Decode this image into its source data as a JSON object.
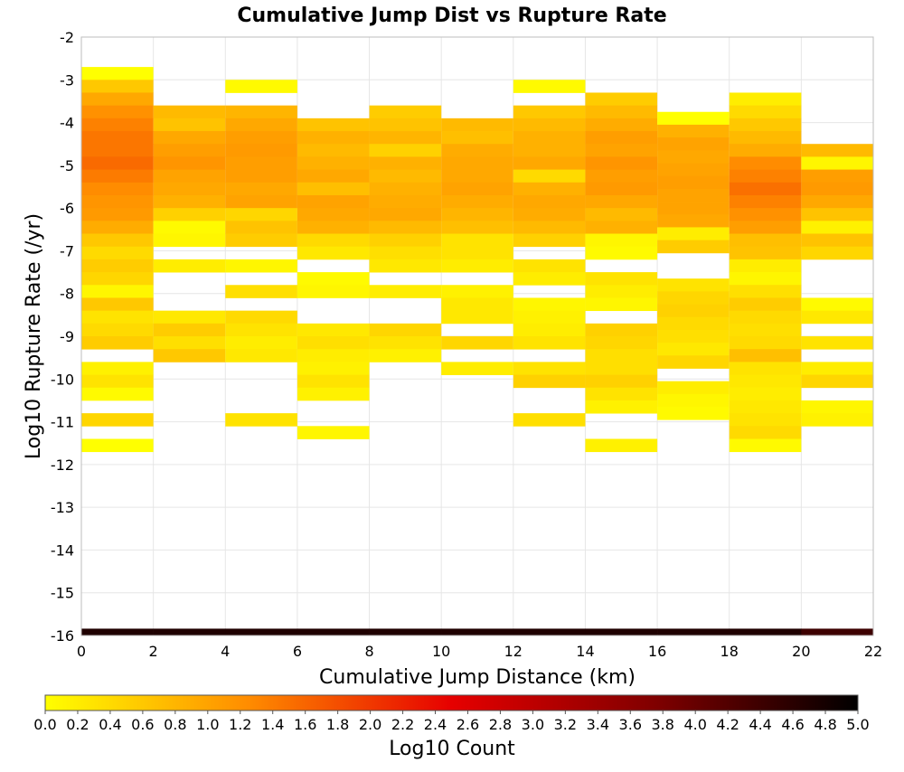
{
  "chart_data": {
    "type": "heatmap",
    "title": "Cumulative Jump Dist vs Rupture Rate",
    "xlabel": "Cumulative Jump Distance (km)",
    "ylabel": "Log10 Rupture Rate (/yr)",
    "xlim": [
      0,
      22
    ],
    "ylim": [
      -16,
      -2
    ],
    "x_ticks": [
      0,
      2,
      4,
      6,
      8,
      10,
      12,
      14,
      16,
      18,
      20,
      22
    ],
    "y_ticks": [
      -2,
      -3,
      -4,
      -5,
      -6,
      -7,
      -8,
      -9,
      -10,
      -11,
      -12,
      -13,
      -14,
      -15,
      -16
    ],
    "grid": true,
    "x_bin_width": 2,
    "y_bin_height": 0.3,
    "colorbar": {
      "label": "Log10 Count",
      "min": 0.0,
      "max": 5.0,
      "ticks": [
        "0.0",
        "0.2",
        "0.4",
        "0.6",
        "0.8",
        "1.0",
        "1.2",
        "1.4",
        "1.6",
        "1.8",
        "2.0",
        "2.2",
        "2.4",
        "2.6",
        "2.8",
        "3.0",
        "3.2",
        "3.4",
        "3.6",
        "3.8",
        "4.0",
        "4.2",
        "4.4",
        "4.6",
        "4.8",
        "5.0"
      ],
      "colors": [
        "#ffff00",
        "#ff8c00",
        "#e60000",
        "#800000",
        "#000000"
      ]
    },
    "columns": [
      {
        "x": 0,
        "cells": [
          [
            -2.85,
            0.0
          ],
          [
            -3.15,
            0.6
          ],
          [
            -3.45,
            0.95
          ],
          [
            -3.75,
            1.2
          ],
          [
            -4.05,
            1.35
          ],
          [
            -4.35,
            1.45
          ],
          [
            -4.65,
            1.45
          ],
          [
            -4.95,
            1.55
          ],
          [
            -5.25,
            1.4
          ],
          [
            -5.55,
            1.25
          ],
          [
            -5.85,
            1.15
          ],
          [
            -6.15,
            1.1
          ],
          [
            -6.45,
            0.9
          ],
          [
            -6.75,
            0.6
          ],
          [
            -7.05,
            0.4
          ],
          [
            -7.35,
            0.55
          ],
          [
            -7.65,
            0.45
          ],
          [
            -7.95,
            0.1
          ],
          [
            -8.25,
            0.6
          ],
          [
            -8.55,
            0.3
          ],
          [
            -8.85,
            0.4
          ],
          [
            -9.15,
            0.55
          ],
          [
            -9.75,
            0.15
          ],
          [
            -10.05,
            0.3
          ],
          [
            -10.35,
            0.05
          ],
          [
            -10.95,
            0.45
          ],
          [
            -11.55,
            0.0
          ]
        ]
      },
      {
        "x": 2,
        "cells": [
          [
            -3.75,
            0.75
          ],
          [
            -4.05,
            0.65
          ],
          [
            -4.35,
            0.95
          ],
          [
            -4.65,
            1.05
          ],
          [
            -4.95,
            1.15
          ],
          [
            -5.25,
            1.0
          ],
          [
            -5.55,
            0.95
          ],
          [
            -5.85,
            0.85
          ],
          [
            -6.15,
            0.5
          ],
          [
            -6.45,
            0.05
          ],
          [
            -6.75,
            0.1
          ],
          [
            -7.35,
            0.2
          ],
          [
            -8.55,
            0.25
          ],
          [
            -8.85,
            0.55
          ],
          [
            -9.15,
            0.35
          ],
          [
            -9.45,
            0.6
          ]
        ]
      },
      {
        "x": 4,
        "cells": [
          [
            -3.15,
            0.05
          ],
          [
            -3.75,
            0.8
          ],
          [
            -4.05,
            0.95
          ],
          [
            -4.35,
            1.05
          ],
          [
            -4.65,
            1.1
          ],
          [
            -4.95,
            1.05
          ],
          [
            -5.25,
            1.05
          ],
          [
            -5.55,
            0.95
          ],
          [
            -5.85,
            1.0
          ],
          [
            -6.15,
            0.45
          ],
          [
            -6.45,
            0.65
          ],
          [
            -6.75,
            0.55
          ],
          [
            -7.35,
            0.1
          ],
          [
            -7.95,
            0.35
          ],
          [
            -8.55,
            0.4
          ],
          [
            -8.85,
            0.3
          ],
          [
            -9.15,
            0.2
          ],
          [
            -9.45,
            0.25
          ],
          [
            -10.95,
            0.3
          ]
        ]
      },
      {
        "x": 6,
        "cells": [
          [
            -4.05,
            0.65
          ],
          [
            -4.35,
            0.85
          ],
          [
            -4.65,
            0.75
          ],
          [
            -4.95,
            0.85
          ],
          [
            -5.25,
            0.95
          ],
          [
            -5.55,
            0.7
          ],
          [
            -5.85,
            1.0
          ],
          [
            -6.15,
            0.95
          ],
          [
            -6.45,
            0.85
          ],
          [
            -6.75,
            0.4
          ],
          [
            -7.05,
            0.25
          ],
          [
            -7.65,
            0.05
          ],
          [
            -7.95,
            0.1
          ],
          [
            -8.85,
            0.25
          ],
          [
            -9.15,
            0.35
          ],
          [
            -9.45,
            0.2
          ],
          [
            -9.75,
            0.15
          ],
          [
            -10.05,
            0.3
          ],
          [
            -10.35,
            0.15
          ],
          [
            -11.25,
            0.1
          ]
        ]
      },
      {
        "x": 8,
        "cells": [
          [
            -3.75,
            0.55
          ],
          [
            -4.05,
            0.65
          ],
          [
            -4.35,
            0.8
          ],
          [
            -4.65,
            0.5
          ],
          [
            -4.95,
            0.85
          ],
          [
            -5.25,
            0.75
          ],
          [
            -5.55,
            0.85
          ],
          [
            -5.85,
            0.9
          ],
          [
            -6.15,
            0.95
          ],
          [
            -6.45,
            0.75
          ],
          [
            -6.75,
            0.5
          ],
          [
            -7.05,
            0.35
          ],
          [
            -7.35,
            0.25
          ],
          [
            -7.95,
            0.2
          ],
          [
            -8.85,
            0.45
          ],
          [
            -9.15,
            0.3
          ],
          [
            -9.45,
            0.15
          ]
        ]
      },
      {
        "x": 10,
        "cells": [
          [
            -4.05,
            0.75
          ],
          [
            -4.35,
            0.7
          ],
          [
            -4.65,
            0.9
          ],
          [
            -4.95,
            0.95
          ],
          [
            -5.25,
            0.95
          ],
          [
            -5.55,
            1.0
          ],
          [
            -5.85,
            0.9
          ],
          [
            -6.15,
            0.8
          ],
          [
            -6.45,
            0.7
          ],
          [
            -6.75,
            0.3
          ],
          [
            -7.05,
            0.3
          ],
          [
            -7.35,
            0.2
          ],
          [
            -7.95,
            0.15
          ],
          [
            -8.25,
            0.25
          ],
          [
            -8.55,
            0.25
          ],
          [
            -9.15,
            0.45
          ],
          [
            -9.75,
            0.2
          ]
        ]
      },
      {
        "x": 12,
        "cells": [
          [
            -3.15,
            0.05
          ],
          [
            -3.75,
            0.6
          ],
          [
            -4.05,
            0.75
          ],
          [
            -4.35,
            0.85
          ],
          [
            -4.65,
            0.85
          ],
          [
            -4.95,
            0.95
          ],
          [
            -5.25,
            0.4
          ],
          [
            -5.55,
            0.85
          ],
          [
            -5.85,
            0.95
          ],
          [
            -6.15,
            0.9
          ],
          [
            -6.45,
            0.75
          ],
          [
            -6.75,
            0.5
          ],
          [
            -7.35,
            0.3
          ],
          [
            -7.65,
            0.2
          ],
          [
            -8.25,
            0.1
          ],
          [
            -8.55,
            0.15
          ],
          [
            -8.85,
            0.2
          ],
          [
            -9.15,
            0.3
          ],
          [
            -9.75,
            0.3
          ],
          [
            -10.05,
            0.5
          ],
          [
            -10.95,
            0.35
          ]
        ]
      },
      {
        "x": 14,
        "cells": [
          [
            -3.45,
            0.55
          ],
          [
            -3.75,
            0.75
          ],
          [
            -4.05,
            0.9
          ],
          [
            -4.35,
            1.05
          ],
          [
            -4.65,
            1.0
          ],
          [
            -4.95,
            1.15
          ],
          [
            -5.25,
            1.05
          ],
          [
            -5.55,
            1.1
          ],
          [
            -5.85,
            0.95
          ],
          [
            -6.15,
            0.75
          ],
          [
            -6.45,
            0.85
          ],
          [
            -6.75,
            0.1
          ],
          [
            -7.05,
            0.05
          ],
          [
            -7.65,
            0.3
          ],
          [
            -7.95,
            0.2
          ],
          [
            -8.25,
            0.1
          ],
          [
            -8.85,
            0.5
          ],
          [
            -9.15,
            0.45
          ],
          [
            -9.45,
            0.35
          ],
          [
            -9.75,
            0.35
          ],
          [
            -10.05,
            0.5
          ],
          [
            -10.35,
            0.3
          ],
          [
            -10.65,
            0.15
          ],
          [
            -11.55,
            0.15
          ]
        ]
      },
      {
        "x": 16,
        "cells": [
          [
            -3.9,
            0.0
          ],
          [
            -4.2,
            0.85
          ],
          [
            -4.5,
            1.0
          ],
          [
            -4.8,
            0.95
          ],
          [
            -5.1,
            1.0
          ],
          [
            -5.4,
            1.05
          ],
          [
            -5.7,
            1.0
          ],
          [
            -6.0,
            1.0
          ],
          [
            -6.3,
            0.95
          ],
          [
            -6.6,
            0.2
          ],
          [
            -6.9,
            0.55
          ],
          [
            -7.8,
            0.3
          ],
          [
            -8.1,
            0.45
          ],
          [
            -8.4,
            0.5
          ],
          [
            -8.7,
            0.4
          ],
          [
            -9.0,
            0.35
          ],
          [
            -9.3,
            0.25
          ],
          [
            -9.6,
            0.45
          ],
          [
            -10.2,
            0.2
          ],
          [
            -10.5,
            0.1
          ],
          [
            -10.8,
            0.05
          ]
        ]
      },
      {
        "x": 18,
        "cells": [
          [
            -3.45,
            0.2
          ],
          [
            -3.75,
            0.4
          ],
          [
            -4.05,
            0.6
          ],
          [
            -4.35,
            0.75
          ],
          [
            -4.65,
            0.9
          ],
          [
            -4.95,
            1.25
          ],
          [
            -5.25,
            1.35
          ],
          [
            -5.55,
            1.5
          ],
          [
            -5.85,
            1.35
          ],
          [
            -6.15,
            1.2
          ],
          [
            -6.45,
            1.05
          ],
          [
            -6.75,
            0.7
          ],
          [
            -7.05,
            0.65
          ],
          [
            -7.35,
            0.2
          ],
          [
            -7.65,
            0.1
          ],
          [
            -7.95,
            0.35
          ],
          [
            -8.25,
            0.55
          ],
          [
            -8.55,
            0.4
          ],
          [
            -8.85,
            0.35
          ],
          [
            -9.15,
            0.4
          ],
          [
            -9.45,
            0.7
          ],
          [
            -9.75,
            0.3
          ],
          [
            -10.05,
            0.25
          ],
          [
            -10.35,
            0.2
          ],
          [
            -10.65,
            0.25
          ],
          [
            -10.95,
            0.3
          ],
          [
            -11.25,
            0.4
          ],
          [
            -11.55,
            0.05
          ]
        ]
      },
      {
        "x": 20,
        "cells": [
          [
            -4.65,
            0.75
          ],
          [
            -4.95,
            0.1
          ],
          [
            -5.25,
            1.05
          ],
          [
            -5.55,
            1.1
          ],
          [
            -5.85,
            0.95
          ],
          [
            -6.15,
            0.65
          ],
          [
            -6.45,
            0.15
          ],
          [
            -6.75,
            0.65
          ],
          [
            -7.05,
            0.45
          ],
          [
            -8.25,
            0.05
          ],
          [
            -8.55,
            0.25
          ],
          [
            -9.15,
            0.3
          ],
          [
            -9.75,
            0.2
          ],
          [
            -10.05,
            0.45
          ],
          [
            -10.65,
            0.1
          ],
          [
            -10.95,
            0.15
          ]
        ]
      }
    ],
    "bottom_row": {
      "y": -15.92,
      "height": 0.16,
      "values": [
        4.7,
        4.7,
        4.7,
        4.7,
        4.7,
        4.7,
        4.7,
        4.7,
        4.7,
        4.7,
        4.4
      ]
    }
  }
}
